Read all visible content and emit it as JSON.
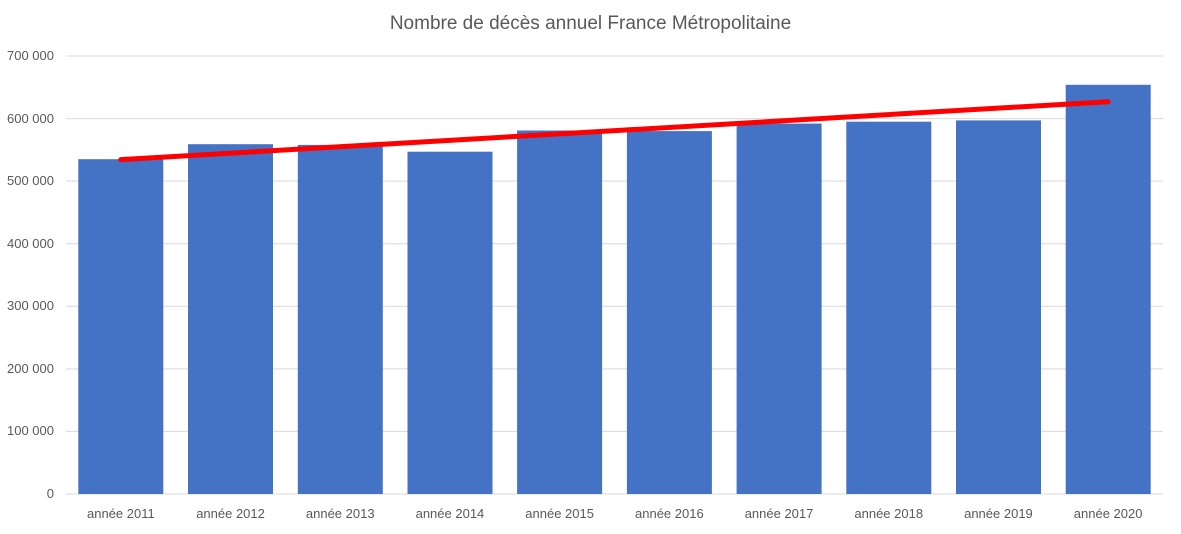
{
  "chart_data": {
    "type": "bar",
    "title": "Nombre de décès annuel France Métropolitaine",
    "categories": [
      "année 2011",
      "année 2012",
      "année 2013",
      "année 2014",
      "année 2015",
      "année 2016",
      "année 2017",
      "année 2018",
      "année 2019",
      "année 2020"
    ],
    "values": [
      535000,
      559000,
      558000,
      547000,
      581000,
      580000,
      592000,
      595000,
      597000,
      654000
    ],
    "xlabel": "",
    "ylabel": "",
    "ylim": [
      0,
      700000
    ],
    "ytick_step": 100000,
    "ytick_labels": [
      "0",
      "100 000",
      "200 000",
      "300 000",
      "400 000",
      "500 000",
      "600 000",
      "700 000"
    ],
    "grid": true,
    "legend": false,
    "bar_color": "#4472C4",
    "gridline_color": "#D9D9D9",
    "text_color": "#595959",
    "background_color": "#FFFFFF",
    "trendline": {
      "type": "linear",
      "color": "#FF0000",
      "start_value": 534500,
      "end_value": 627000
    }
  }
}
